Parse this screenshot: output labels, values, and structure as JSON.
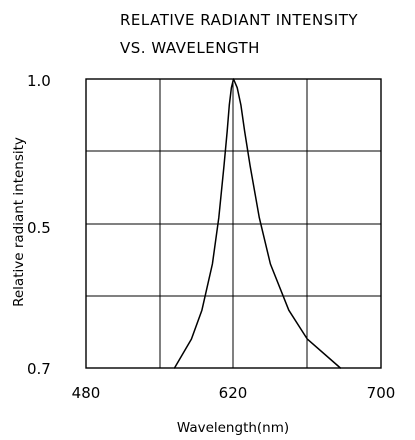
{
  "chart_data": {
    "type": "line",
    "title_lines": [
      "RELATIVE RADIANT INTENSITY",
      "VS. WAVELENGTH"
    ],
    "xlabel": "Wavelength(nm)",
    "ylabel": "Relative radiant intensity",
    "x_tick_labels": [
      "480",
      "620",
      "700"
    ],
    "y_tick_labels": [
      "1.0",
      "0.5",
      "0.7"
    ],
    "grid": true,
    "series": [
      {
        "x": [
          564,
          580,
          590,
          600,
          606,
          611,
          614,
          616,
          618,
          620,
          622,
          624,
          626,
          629,
          634,
          640,
          650,
          660,
          678
        ],
        "y": [
          0.0,
          0.1,
          0.2,
          0.36,
          0.52,
          0.7,
          0.82,
          0.91,
          0.97,
          1.0,
          0.97,
          0.91,
          0.82,
          0.7,
          0.52,
          0.36,
          0.2,
          0.1,
          0.0
        ]
      }
    ]
  }
}
